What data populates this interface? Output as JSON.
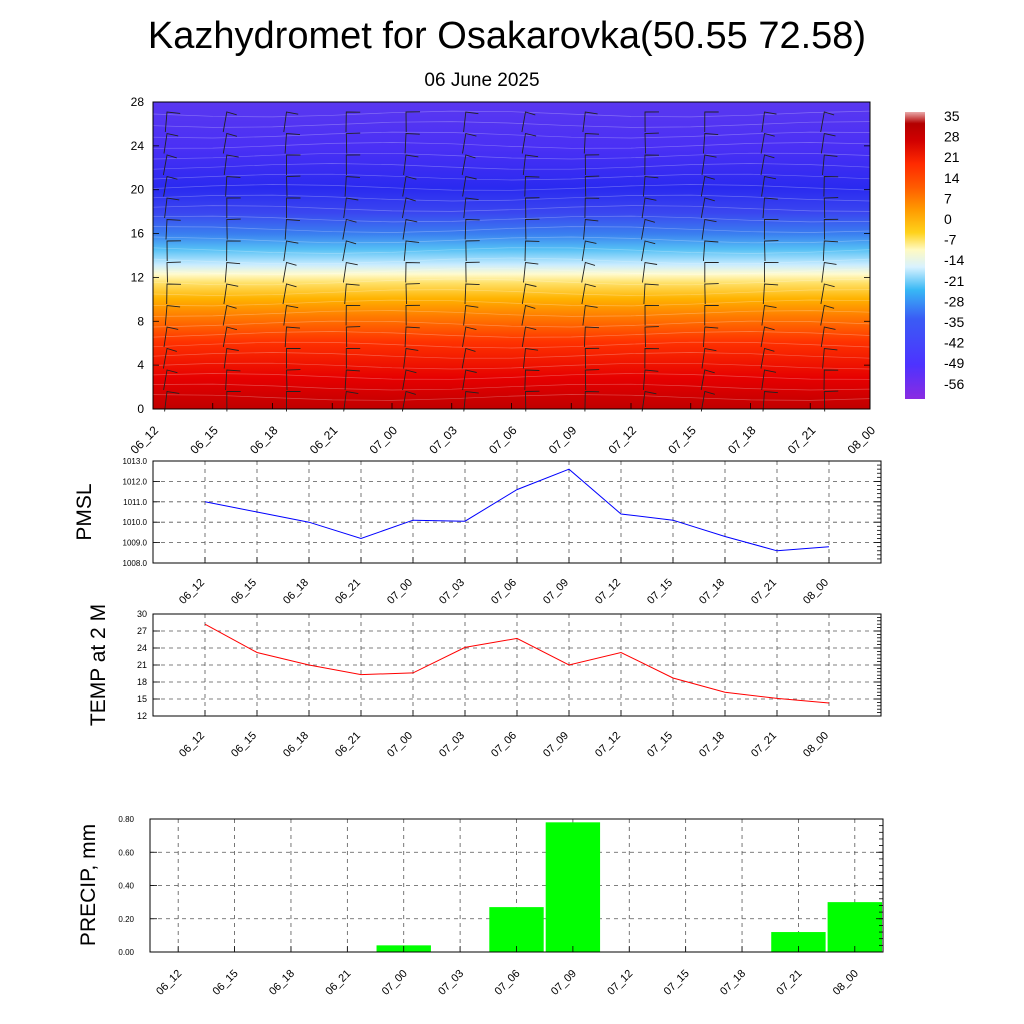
{
  "title": "Kazhydromet for Osakarovka(50.55 72.58)",
  "subtitle": "06 June 2025",
  "time_labels": [
    "06_12",
    "06_15",
    "06_18",
    "06_21",
    "07_00",
    "07_03",
    "07_06",
    "07_09",
    "07_12",
    "07_15",
    "07_18",
    "07_21",
    "08_00"
  ],
  "colors": {
    "pmsl_line": "#0000ff",
    "temp_line": "#ff0000",
    "precip_bar": "#00ff00",
    "temperature_scale": [
      "#8a2be2",
      "#4d33ff",
      "#3a5cf5",
      "#38b8f5",
      "#d8f2ff",
      "#fffac2",
      "#ffd21a",
      "#ff9a00",
      "#ff5a00",
      "#ff2a00",
      "#d10000",
      "#b30000",
      "#e9a9a9"
    ]
  },
  "colorbar": {
    "labels": [
      "35",
      "28",
      "21",
      "14",
      "7",
      "0",
      "-7",
      "-14",
      "-21",
      "-28",
      "-35",
      "-42",
      "-49",
      "-56"
    ]
  },
  "chart_data": [
    {
      "type": "heatmap",
      "description": "temperature cross-section with wind barbs",
      "y_ticks": [
        "0",
        "4",
        "8",
        "12",
        "16",
        "20",
        "24",
        "28"
      ],
      "ylim": [
        0,
        28
      ],
      "x": [
        "06_12",
        "06_15",
        "06_18",
        "06_21",
        "07_00",
        "07_03",
        "07_06",
        "07_09",
        "07_12",
        "07_15",
        "07_18",
        "07_21",
        "08_00"
      ],
      "temperature_profile": {
        "levels": [
          0,
          4,
          8,
          12,
          13,
          16,
          18,
          20,
          24,
          28
        ],
        "values": [
          28,
          21,
          10,
          -6,
          -14,
          -32,
          -45,
          -55,
          -52,
          -50
        ]
      },
      "colorbar_range": [
        -56,
        35
      ]
    },
    {
      "type": "line",
      "ylabel": "PMSL",
      "x": [
        "06_12",
        "06_15",
        "06_18",
        "06_21",
        "07_00",
        "07_03",
        "07_06",
        "07_09",
        "07_12",
        "07_15",
        "07_18",
        "07_21",
        "08_00"
      ],
      "values": [
        1011.0,
        1010.5,
        1010.0,
        1009.2,
        1010.1,
        1010.05,
        1011.6,
        1012.6,
        1010.4,
        1010.1,
        1009.3,
        1008.6,
        1008.8
      ],
      "ylim": [
        1008.0,
        1013.0
      ],
      "y_ticks": [
        "1008.0",
        "1009.0",
        "1010.0",
        "1011.0",
        "1012.0",
        "1013.0"
      ]
    },
    {
      "type": "line",
      "ylabel": "TEMP at 2 M",
      "x": [
        "06_12",
        "06_15",
        "06_18",
        "06_21",
        "07_00",
        "07_03",
        "07_06",
        "07_09",
        "07_12",
        "07_15",
        "07_18",
        "07_21",
        "08_00"
      ],
      "values": [
        28.2,
        23.2,
        21.0,
        19.3,
        19.6,
        24.1,
        25.7,
        21.0,
        23.2,
        18.7,
        16.2,
        15.1,
        14.3
      ],
      "ylim": [
        12,
        30
      ],
      "y_ticks": [
        "12",
        "15",
        "18",
        "21",
        "24",
        "27",
        "30"
      ]
    },
    {
      "type": "bar",
      "ylabel": "PRECIP, mm",
      "x": [
        "06_12",
        "06_15",
        "06_18",
        "06_21",
        "07_00",
        "07_03",
        "07_06",
        "07_09",
        "07_12",
        "07_15",
        "07_18",
        "07_21",
        "08_00"
      ],
      "values": [
        0,
        0,
        0,
        0,
        0.04,
        0,
        0.27,
        0.78,
        0,
        0,
        0,
        0.12,
        0.3
      ],
      "ylim": [
        0,
        0.8
      ],
      "y_ticks": [
        "0.00",
        "0.20",
        "0.40",
        "0.60",
        "0.80"
      ]
    }
  ]
}
